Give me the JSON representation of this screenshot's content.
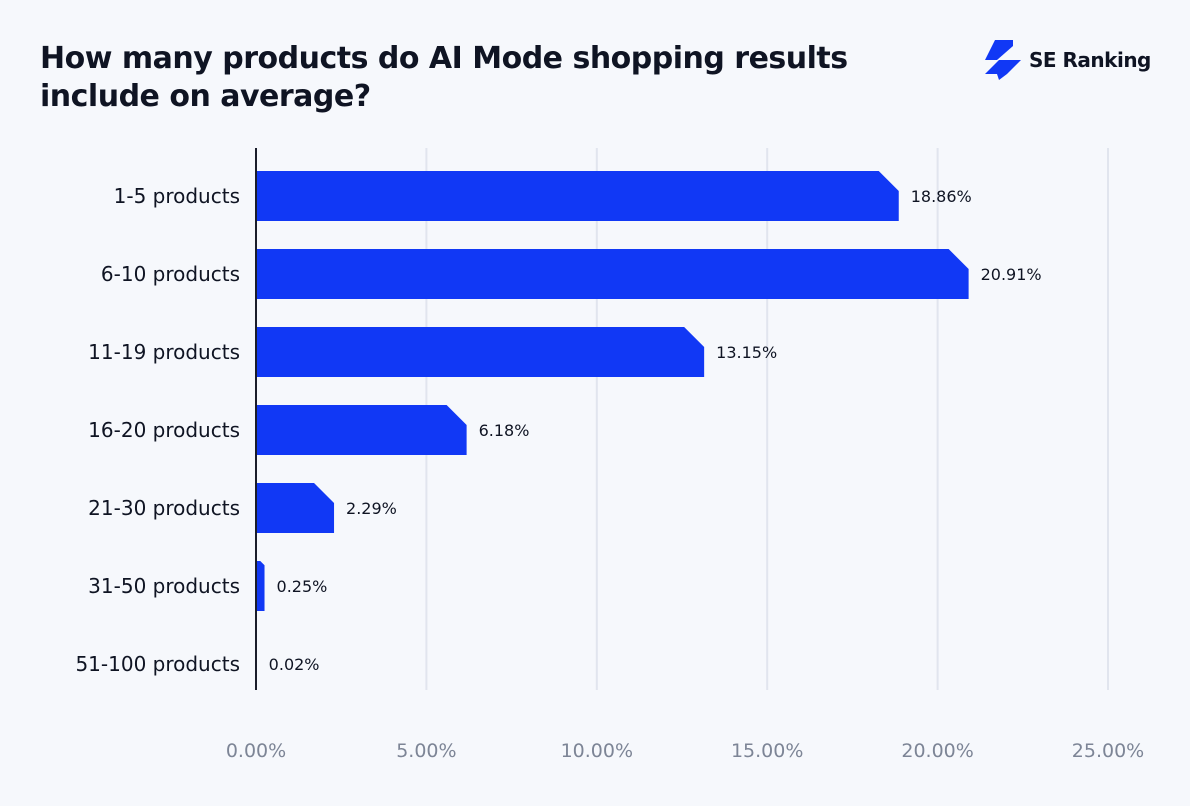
{
  "title": "How many products do AI Mode shopping results include on average?",
  "logo": {
    "text": "SE Ranking",
    "icon": "se-ranking-logo-icon",
    "color": "#1138f5"
  },
  "chart_data": {
    "type": "bar",
    "orientation": "horizontal",
    "title": "How many products do AI Mode shopping results include on average?",
    "categories": [
      "1-5 products",
      "6-10 products",
      "11-19 products",
      "16-20 products",
      "21-30 products",
      "31-50 products",
      "51-100 products"
    ],
    "values": [
      18.86,
      20.91,
      13.15,
      6.18,
      2.29,
      0.25,
      0.02
    ],
    "data_labels": [
      "18.86%",
      "20.91%",
      "13.15%",
      "6.18%",
      "2.29%",
      "0.25%",
      "0.02%"
    ],
    "xlim": [
      0,
      25
    ],
    "xticks": [
      0,
      5,
      10,
      15,
      20,
      25
    ],
    "xtick_labels": [
      "0.00%",
      "5.00%",
      "10.00%",
      "15.00%",
      "20.00%",
      "25.00%"
    ],
    "xlabel": "",
    "ylabel": "",
    "grid": true,
    "bar_color": "#1138f5"
  }
}
